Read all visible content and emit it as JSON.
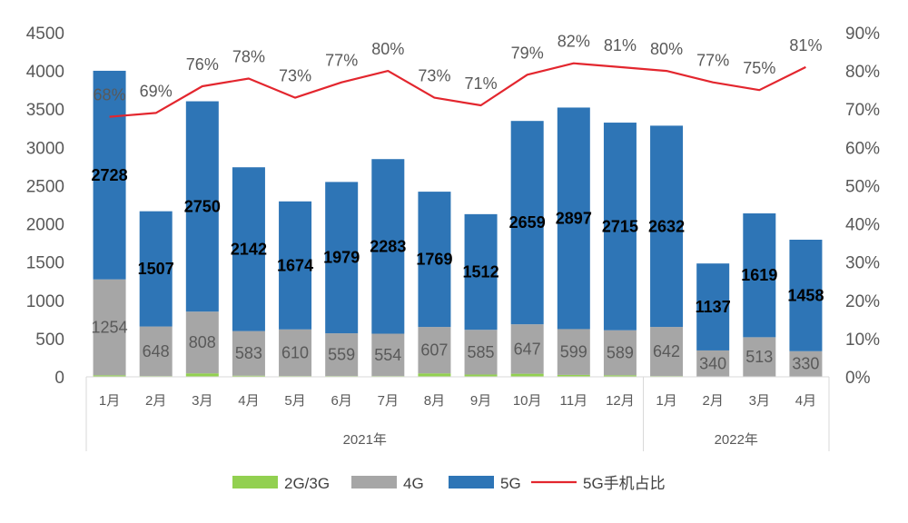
{
  "chart_data": {
    "type": "bar",
    "stacked": true,
    "categories": [
      "1月",
      "2月",
      "3月",
      "4月",
      "5月",
      "6月",
      "7月",
      "8月",
      "9月",
      "10月",
      "11月",
      "12月",
      "1月",
      "2月",
      "3月",
      "4月"
    ],
    "groups": [
      {
        "label": "2021年",
        "count": 12
      },
      {
        "label": "2022年",
        "count": 4
      }
    ],
    "series": [
      {
        "name": "2G/3G",
        "type": "bar",
        "color": "#92d050",
        "values": [
          20,
          10,
          45,
          15,
          10,
          10,
          10,
          45,
          30,
          40,
          25,
          20,
          10,
          5,
          5,
          5
        ],
        "show_labels": false
      },
      {
        "name": "4G",
        "type": "bar",
        "color": "#a6a6a6",
        "values": [
          1254,
          648,
          808,
          583,
          610,
          559,
          554,
          607,
          585,
          647,
          599,
          589,
          642,
          340,
          513,
          330
        ],
        "show_labels": true
      },
      {
        "name": "5G",
        "type": "bar",
        "color": "#2e75b6",
        "values": [
          2728,
          1507,
          2750,
          2142,
          1674,
          1979,
          2283,
          1769,
          1512,
          2659,
          2897,
          2715,
          2632,
          1137,
          1619,
          1458
        ],
        "show_labels": true
      },
      {
        "name": "5G手机占比",
        "type": "line",
        "axis": "right",
        "color": "#e3262e",
        "values": [
          68,
          69,
          76,
          78,
          73,
          77,
          80,
          73,
          71,
          79,
          82,
          81,
          80,
          77,
          75,
          81
        ],
        "labels": [
          "68%",
          "69%",
          "76%",
          "78%",
          "73%",
          "77%",
          "80%",
          "73%",
          "71%",
          "79%",
          "82%",
          "81%",
          "80%",
          "77%",
          "75%",
          "81%"
        ]
      }
    ],
    "y_left": {
      "min": 0,
      "max": 4500,
      "step": 500,
      "ticks": [
        "0",
        "500",
        "1000",
        "1500",
        "2000",
        "2500",
        "3000",
        "3500",
        "4000",
        "4500"
      ]
    },
    "y_right": {
      "min": 0,
      "max": 90,
      "step": 10,
      "ticks": [
        "0%",
        "10%",
        "20%",
        "30%",
        "40%",
        "50%",
        "60%",
        "70%",
        "80%",
        "90%"
      ]
    },
    "grid": false,
    "legend_position": "bottom"
  }
}
